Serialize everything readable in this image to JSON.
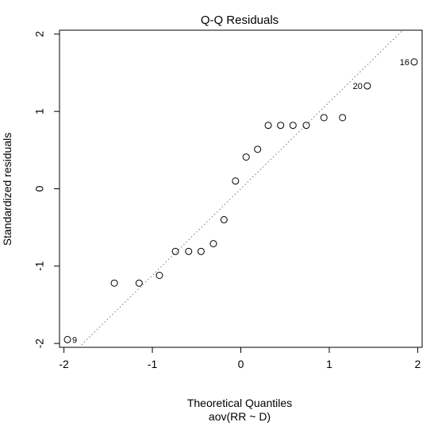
{
  "chart_data": {
    "type": "scatter",
    "title": "Q-Q Residuals",
    "xlabel": "Theoretical Quantiles",
    "sublabel": "aov(RR ~ D)",
    "ylabel": "Standardized residuals",
    "xlim": [
      -2.05,
      2.05
    ],
    "ylim": [
      -2.05,
      2.05
    ],
    "xticks": [
      -2,
      -1,
      0,
      1,
      2
    ],
    "yticks": [
      -2,
      -1,
      0,
      1,
      2
    ],
    "grid": false,
    "reference_line": {
      "style": "dotted",
      "intercept": 0.0,
      "slope": 1.12
    },
    "points": [
      {
        "x": -1.96,
        "y": -1.95,
        "label": "9"
      },
      {
        "x": -1.43,
        "y": -1.22
      },
      {
        "x": -1.15,
        "y": -1.22
      },
      {
        "x": -0.92,
        "y": -1.12
      },
      {
        "x": -0.74,
        "y": -0.81
      },
      {
        "x": -0.59,
        "y": -0.81
      },
      {
        "x": -0.45,
        "y": -0.81
      },
      {
        "x": -0.31,
        "y": -0.71
      },
      {
        "x": -0.19,
        "y": -0.4
      },
      {
        "x": -0.06,
        "y": 0.1
      },
      {
        "x": 0.06,
        "y": 0.41
      },
      {
        "x": 0.19,
        "y": 0.51
      },
      {
        "x": 0.31,
        "y": 0.82
      },
      {
        "x": 0.45,
        "y": 0.82
      },
      {
        "x": 0.59,
        "y": 0.82
      },
      {
        "x": 0.74,
        "y": 0.82
      },
      {
        "x": 0.94,
        "y": 0.92
      },
      {
        "x": 1.15,
        "y": 0.92
      },
      {
        "x": 1.43,
        "y": 1.33,
        "label": "20"
      },
      {
        "x": 1.96,
        "y": 1.64,
        "label": "16"
      }
    ]
  }
}
